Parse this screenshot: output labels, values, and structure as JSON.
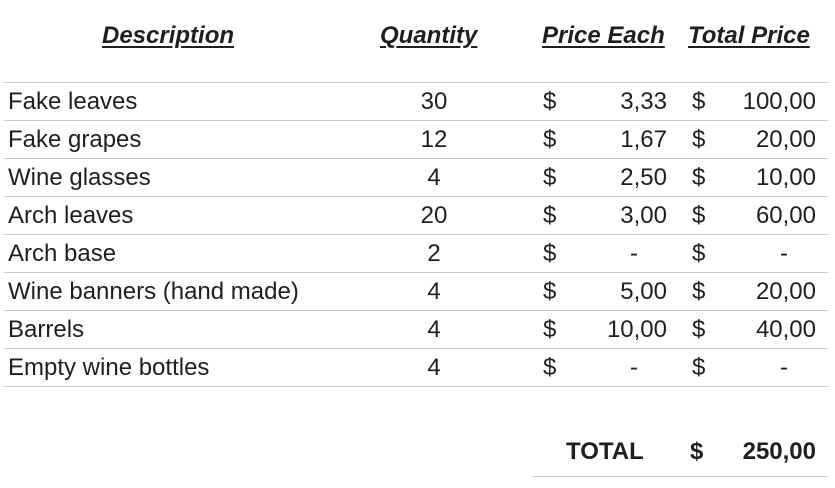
{
  "headers": {
    "description": "Description",
    "quantity": "Quantity",
    "price_each": "Price Each",
    "total_price": "Total Price"
  },
  "currency_symbol": "$",
  "rows": [
    {
      "description": "Fake leaves",
      "quantity": "30",
      "price_each": "3,33",
      "total_price": "100,00"
    },
    {
      "description": "Fake grapes",
      "quantity": "12",
      "price_each": "1,67",
      "total_price": "20,00"
    },
    {
      "description": "Wine glasses",
      "quantity": "4",
      "price_each": "2,50",
      "total_price": "10,00"
    },
    {
      "description": "Arch leaves",
      "quantity": "20",
      "price_each": "3,00",
      "total_price": "60,00"
    },
    {
      "description": "Arch base",
      "quantity": "2",
      "price_each": "-",
      "total_price": "-"
    },
    {
      "description": "Wine banners (hand made)",
      "quantity": "4",
      "price_each": "5,00",
      "total_price": "20,00"
    },
    {
      "description": "Barrels",
      "quantity": "4",
      "price_each": "10,00",
      "total_price": "40,00"
    },
    {
      "description": "Empty wine bottles",
      "quantity": "4",
      "price_each": "-",
      "total_price": "-"
    }
  ],
  "total": {
    "label": "TOTAL",
    "amount": "250,00"
  },
  "colors": {
    "text": "#1f1f1f",
    "gridline": "#c8c8c8",
    "background": "#ffffff"
  }
}
